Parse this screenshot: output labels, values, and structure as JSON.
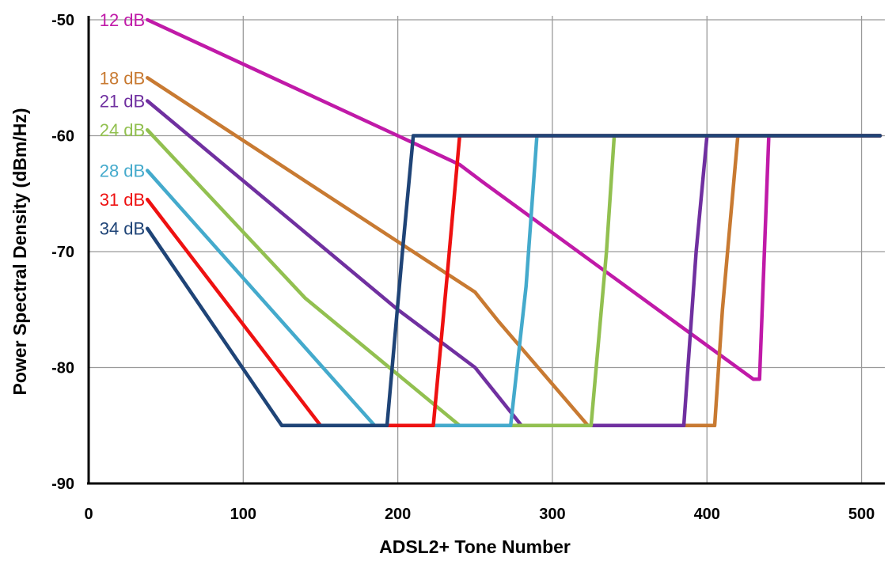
{
  "chart_data": {
    "type": "line",
    "title": "",
    "xlabel": "ADSL2+ Tone Number",
    "ylabel": "Power Spectral Density (dBm/Hz)",
    "xlim": [
      0,
      512
    ],
    "ylim": [
      -90,
      -50
    ],
    "xticks": [
      0,
      100,
      200,
      300,
      400,
      500
    ],
    "yticks": [
      -50,
      -60,
      -70,
      -80,
      -90
    ],
    "xtick_labels": [
      "0",
      "100",
      "200",
      "300",
      "400",
      "500"
    ],
    "ytick_labels": [
      "-50",
      "-60",
      "-70",
      "-80",
      "-90"
    ],
    "grid": true,
    "legend": "inline-left",
    "series": [
      {
        "name": "12 dB",
        "color": "#c01aa8",
        "x": [
          38,
          200,
          240,
          255,
          430,
          434,
          440,
          512
        ],
        "y": [
          -50,
          -60,
          -62.5,
          -64,
          -81,
          -81,
          -60,
          -60
        ]
      },
      {
        "name": "18 dB",
        "color": "#c87a32",
        "x": [
          38,
          250,
          265,
          323,
          405,
          410,
          420,
          512
        ],
        "y": [
          -55,
          -73.5,
          -76,
          -85,
          -85,
          -75,
          -60,
          -60
        ]
      },
      {
        "name": "21 dB",
        "color": "#7030a0",
        "x": [
          38,
          200,
          250,
          280,
          385,
          393,
          400,
          512
        ],
        "y": [
          -57,
          -75,
          -80,
          -85,
          -85,
          -70,
          -60,
          -60
        ]
      },
      {
        "name": "24 dB",
        "color": "#92c050",
        "x": [
          38,
          140,
          240,
          325,
          335,
          340,
          512
        ],
        "y": [
          -59.5,
          -74,
          -85,
          -85,
          -70,
          -60,
          -60
        ]
      },
      {
        "name": "28 dB",
        "color": "#44aacc",
        "x": [
          38,
          185,
          273,
          283,
          290,
          512
        ],
        "y": [
          -63,
          -85,
          -85,
          -73,
          -60,
          -60
        ]
      },
      {
        "name": "31 dB",
        "color": "#ee1111",
        "x": [
          38,
          150,
          223,
          232,
          240,
          512
        ],
        "y": [
          -65.5,
          -85,
          -85,
          -72,
          -60,
          -60
        ]
      },
      {
        "name": "34 dB",
        "color": "#1f4477",
        "x": [
          38,
          125,
          193,
          203,
          210,
          512
        ],
        "y": [
          -68,
          -85,
          -85,
          -70,
          -60,
          -60
        ]
      }
    ]
  }
}
